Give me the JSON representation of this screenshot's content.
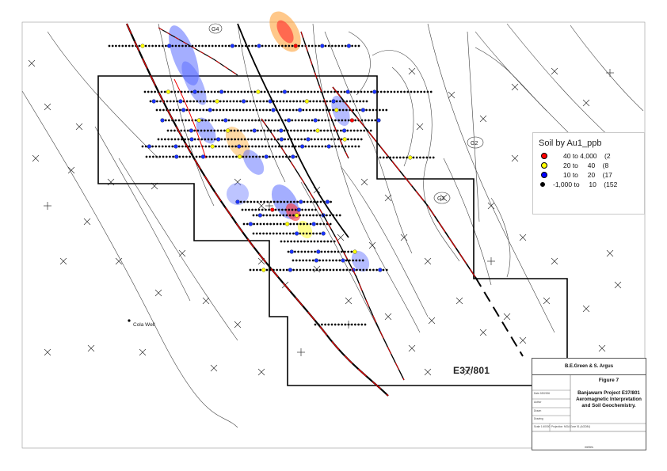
{
  "legend": {
    "title": "Soil by Au1_ppb",
    "items": [
      {
        "range": "40 to 4,000",
        "count": "(2",
        "color": "#ff0000"
      },
      {
        "range": "20 to     40",
        "count": "(8",
        "color": "#ffff00"
      },
      {
        "range": "10 to     20",
        "count": "(17",
        "color": "#0000ff"
      },
      {
        "range": "-1,000 to     10",
        "count": "(152",
        "color": "#000000"
      }
    ]
  },
  "title_block": {
    "author": "B.E.Green & S. Argus",
    "figure": "Figure 7",
    "desc_line1": "Banjawarn Project E37/801",
    "desc_line2": "Aeromagnetic Interpretation",
    "desc_line3": "and Soil Geochemistry.",
    "date_label": "Date 2/8/2006",
    "author_label": "Author",
    "drawn_label": "Drawn",
    "drawing_label": "Drawing",
    "scale_label": "Scale 1:40000",
    "projection_label": "Projection: MGA Zone 51 (AGD84)",
    "scale_ticks": [
      "0",
      "250",
      "500",
      "1000"
    ],
    "scale_units": "metres"
  },
  "tenement_label": "E37/801",
  "annotations": {
    "well": "Cola\nWell",
    "g1": "G1",
    "g2": "G2",
    "g3": "G3",
    "g4": "G4"
  }
}
